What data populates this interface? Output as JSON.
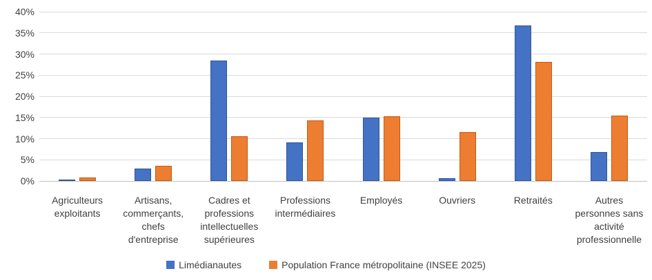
{
  "chart_data": {
    "type": "bar",
    "title": "",
    "xlabel": "",
    "ylabel": "",
    "ylim": [
      0,
      40
    ],
    "ytick_step": 5,
    "ytick_labels": [
      "0%",
      "5%",
      "10%",
      "15%",
      "20%",
      "25%",
      "30%",
      "35%",
      "40%"
    ],
    "grid": true,
    "legend_position": "bottom",
    "categories": [
      "Agriculteurs exploitants",
      "Artisans, commerçants, chefs d'entreprise",
      "Cadres et professions intellectuelles supérieures",
      "Professions intermédiaires",
      "Employés",
      "Ouvriers",
      "Retraités",
      "Autres personnes sans activité professionnelle"
    ],
    "series": [
      {
        "name": "Limédianautes",
        "color": "#4472c4",
        "border_color": "#2f5597",
        "values": [
          0.2,
          2.9,
          28.5,
          9.1,
          14.9,
          0.7,
          36.8,
          6.8
        ]
      },
      {
        "name": "Population France métropolitaine (INSEE 2025)",
        "color": "#ed7d31",
        "border_color": "#c55a11",
        "values": [
          0.8,
          3.5,
          10.6,
          14.3,
          15.3,
          11.6,
          28.1,
          15.5
        ]
      }
    ]
  },
  "colors": {
    "gridline": "#d9d9d9",
    "axis_line": "#bfbfbf",
    "axis_text": "#404040",
    "background": "#ffffff"
  }
}
